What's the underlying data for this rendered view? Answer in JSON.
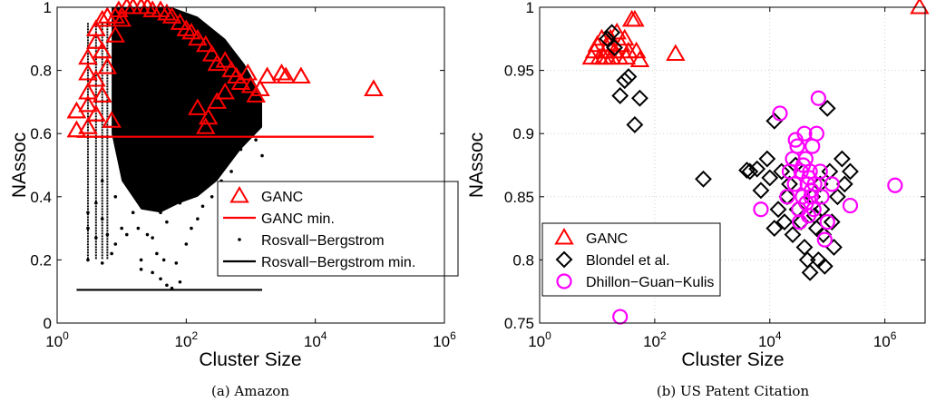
{
  "captions": [
    "(a) Amazon",
    "(b) US Patent Citation"
  ],
  "colors": {
    "ganc": "#ff0000",
    "rb": "#000000",
    "blondel": "#000000",
    "dgk": "#ff00ff"
  },
  "chart_data": [
    {
      "type": "scatter",
      "xscale": "log",
      "xlabel": "Cluster Size",
      "ylabel": "NAssoc",
      "xlim": [
        1,
        1000000
      ],
      "ylim": [
        0,
        1
      ],
      "xticks": [
        {
          "v": 1,
          "base": "10",
          "exp": "0"
        },
        {
          "v": 100,
          "base": "10",
          "exp": "2"
        },
        {
          "v": 10000,
          "base": "10",
          "exp": "4"
        },
        {
          "v": 1000000,
          "base": "10",
          "exp": "6"
        }
      ],
      "yticks": [
        0,
        0.2,
        0.4,
        0.6,
        0.8,
        1
      ],
      "ytick_labels": [
        "0",
        "0.2",
        "0.4",
        "0.6",
        "0.8",
        "1"
      ],
      "legend": {
        "position": "center-right",
        "entries": [
          "GANC",
          "GANC min.",
          "Rosvall−Bergstrom",
          "Rosvall−Bergstrom min."
        ]
      },
      "series": [
        {
          "name": "GANC",
          "marker": "triangle",
          "color": "#ff0000",
          "points": [
            [
              2,
              0.67
            ],
            [
              2,
              0.61
            ],
            [
              3,
              0.73
            ],
            [
              3,
              0.69
            ],
            [
              3,
              0.79
            ],
            [
              3,
              0.62
            ],
            [
              3,
              0.84
            ],
            [
              4,
              0.89
            ],
            [
              4,
              0.77
            ],
            [
              4,
              0.66
            ],
            [
              4,
              0.93
            ],
            [
              5,
              0.96
            ],
            [
              5,
              0.72
            ],
            [
              5,
              0.86
            ],
            [
              6,
              0.97
            ],
            [
              6,
              0.81
            ],
            [
              7,
              0.64
            ],
            [
              8,
              0.97
            ],
            [
              8,
              0.91
            ],
            [
              9,
              0.99
            ],
            [
              10,
              0.96
            ],
            [
              12,
              1.0
            ],
            [
              15,
              1.0
            ],
            [
              20,
              1.0
            ],
            [
              25,
              1.0
            ],
            [
              30,
              0.99
            ],
            [
              40,
              0.99
            ],
            [
              50,
              0.98
            ],
            [
              60,
              0.97
            ],
            [
              80,
              0.95
            ],
            [
              100,
              0.93
            ],
            [
              120,
              0.92
            ],
            [
              150,
              0.9
            ],
            [
              200,
              0.88
            ],
            [
              250,
              0.85
            ],
            [
              300,
              0.82
            ],
            [
              400,
              0.83
            ],
            [
              500,
              0.8
            ],
            [
              600,
              0.78
            ],
            [
              700,
              0.76
            ],
            [
              900,
              0.79
            ],
            [
              1000,
              0.75
            ],
            [
              1200,
              0.72
            ],
            [
              1400,
              0.74
            ],
            [
              1800,
              0.78
            ],
            [
              3000,
              0.79
            ],
            [
              3500,
              0.78
            ],
            [
              6000,
              0.78
            ],
            [
              80000,
              0.74
            ],
            [
              220,
              0.65
            ],
            [
              300,
              0.7
            ],
            [
              200,
              0.62
            ],
            [
              150,
              0.68
            ],
            [
              400,
              0.73
            ]
          ]
        },
        {
          "name": "GANC min.",
          "type": "line",
          "color": "#ff0000",
          "y": 0.59,
          "x": [
            2,
            80000
          ]
        },
        {
          "name": "Rosvall−Bergstrom",
          "marker": "dot",
          "color": "#000000",
          "points": [
            [
              3,
              0.35
            ],
            [
              3,
              0.3
            ],
            [
              3,
              0.2
            ],
            [
              4,
              0.27
            ],
            [
              4,
              0.38
            ],
            [
              5,
              0.19
            ],
            [
              5,
              0.33
            ],
            [
              5,
              0.45
            ],
            [
              6,
              0.28
            ],
            [
              7,
              0.22
            ],
            [
              8,
              0.25
            ],
            [
              8,
              0.4
            ],
            [
              10,
              0.3
            ],
            [
              12,
              0.28
            ],
            [
              15,
              0.35
            ],
            [
              18,
              0.3
            ],
            [
              20,
              0.2
            ],
            [
              25,
              0.28
            ],
            [
              30,
              0.27
            ],
            [
              40,
              0.35
            ],
            [
              50,
              0.32
            ],
            [
              60,
              0.4
            ],
            [
              80,
              0.38
            ],
            [
              100,
              0.45
            ],
            [
              150,
              0.42
            ],
            [
              200,
              0.5
            ],
            [
              250,
              0.48
            ],
            [
              300,
              0.55
            ],
            [
              400,
              0.52
            ],
            [
              600,
              0.58
            ],
            [
              800,
              0.6
            ],
            [
              1200,
              0.58
            ],
            [
              1500,
              0.53
            ],
            [
              30,
              0.16
            ],
            [
              40,
              0.14
            ],
            [
              50,
              0.12
            ],
            [
              60,
              0.11
            ],
            [
              80,
              0.13
            ],
            [
              20,
              0.17
            ],
            [
              35,
              0.22
            ],
            [
              45,
              0.2
            ],
            [
              70,
              0.19
            ],
            [
              100,
              0.25
            ],
            [
              120,
              0.3
            ],
            [
              150,
              0.33
            ],
            [
              180,
              0.37
            ],
            [
              250,
              0.4
            ],
            [
              350,
              0.45
            ],
            [
              500,
              0.48
            ],
            [
              700,
              0.55
            ],
            [
              1000,
              0.62
            ]
          ]
        },
        {
          "name": "Rosvall−Bergstrom min.",
          "type": "line",
          "color": "#000000",
          "y": 0.105,
          "x": [
            2,
            1500
          ]
        }
      ]
    },
    {
      "type": "scatter",
      "xscale": "log",
      "xlabel": "Cluster Size",
      "ylabel": "NAssoc",
      "xlim": [
        1,
        5000000
      ],
      "ylim": [
        0.75,
        1
      ],
      "xticks": [
        {
          "v": 1,
          "base": "10",
          "exp": "0"
        },
        {
          "v": 100,
          "base": "10",
          "exp": "2"
        },
        {
          "v": 10000,
          "base": "10",
          "exp": "4"
        },
        {
          "v": 1000000,
          "base": "10",
          "exp": "6"
        }
      ],
      "yticks": [
        0.75,
        0.8,
        0.85,
        0.9,
        0.95,
        1
      ],
      "ytick_labels": [
        "0.75",
        "0.8",
        "0.85",
        "0.9",
        "0.95",
        "1"
      ],
      "legend": {
        "position": "bottom-left",
        "entries": [
          "GANC",
          "Blondel et al.",
          "Dhillon−Guan−Kulis"
        ]
      },
      "series": [
        {
          "name": "GANC",
          "marker": "triangle",
          "color": "#ff0000",
          "points": [
            [
              8,
              0.96
            ],
            [
              9,
              0.965
            ],
            [
              10,
              0.97
            ],
            [
              11,
              0.96
            ],
            [
              12,
              0.975
            ],
            [
              13,
              0.96
            ],
            [
              14,
              0.965
            ],
            [
              15,
              0.96
            ],
            [
              16,
              0.97
            ],
            [
              17,
              0.975
            ],
            [
              18,
              0.96
            ],
            [
              20,
              0.965
            ],
            [
              22,
              0.98
            ],
            [
              24,
              0.96
            ],
            [
              26,
              0.97
            ],
            [
              30,
              0.975
            ],
            [
              32,
              0.96
            ],
            [
              35,
              0.965
            ],
            [
              40,
              0.99
            ],
            [
              45,
              0.99
            ],
            [
              48,
              0.965
            ],
            [
              55,
              0.958
            ],
            [
              230,
              0.963
            ],
            [
              4000000,
              1.0
            ]
          ]
        },
        {
          "name": "Blondel et al.",
          "marker": "diamond",
          "color": "#000000",
          "points": [
            [
              15,
              0.975
            ],
            [
              18,
              0.98
            ],
            [
              20,
              0.968
            ],
            [
              25,
              0.93
            ],
            [
              30,
              0.942
            ],
            [
              35,
              0.945
            ],
            [
              45,
              0.907
            ],
            [
              55,
              0.928
            ],
            [
              700,
              0.864
            ],
            [
              4000,
              0.871
            ],
            [
              4500,
              0.87
            ],
            [
              6000,
              0.872
            ],
            [
              7000,
              0.855
            ],
            [
              9000,
              0.88
            ],
            [
              10000,
              0.865
            ],
            [
              12000,
              0.91
            ],
            [
              14000,
              0.84
            ],
            [
              16000,
              0.87
            ],
            [
              18000,
              0.83
            ],
            [
              20000,
              0.85
            ],
            [
              22000,
              0.86
            ],
            [
              25000,
              0.82
            ],
            [
              28000,
              0.875
            ],
            [
              30000,
              0.84
            ],
            [
              35000,
              0.83
            ],
            [
              40000,
              0.81
            ],
            [
              45000,
              0.8
            ],
            [
              50000,
              0.79
            ],
            [
              55000,
              0.85
            ],
            [
              60000,
              0.835
            ],
            [
              65000,
              0.825
            ],
            [
              70000,
              0.8
            ],
            [
              75000,
              0.86
            ],
            [
              80000,
              0.84
            ],
            [
              85000,
              0.82
            ],
            [
              90000,
              0.795
            ],
            [
              100000,
              0.92
            ],
            [
              110000,
              0.87
            ],
            [
              120000,
              0.83
            ],
            [
              130000,
              0.81
            ],
            [
              150000,
              0.85
            ],
            [
              180000,
              0.88
            ],
            [
              200000,
              0.86
            ],
            [
              250000,
              0.87
            ],
            [
              12000,
              0.825
            ]
          ]
        },
        {
          "name": "Dhillon−Guan−Kulis",
          "marker": "circle",
          "color": "#ff00ff",
          "points": [
            [
              25,
              0.755
            ],
            [
              7000,
              0.84
            ],
            [
              15000,
              0.916
            ],
            [
              20000,
              0.85
            ],
            [
              22000,
              0.87
            ],
            [
              25000,
              0.88
            ],
            [
              27000,
              0.86
            ],
            [
              30000,
              0.89
            ],
            [
              32000,
              0.84
            ],
            [
              35000,
              0.87
            ],
            [
              37000,
              0.85
            ],
            [
              40000,
              0.9
            ],
            [
              42000,
              0.88
            ],
            [
              45000,
              0.86
            ],
            [
              47000,
              0.835
            ],
            [
              50000,
              0.87
            ],
            [
              52000,
              0.85
            ],
            [
              55000,
              0.89
            ],
            [
              58000,
              0.84
            ],
            [
              60000,
              0.86
            ],
            [
              65000,
              0.9
            ],
            [
              70000,
              0.928
            ],
            [
              75000,
              0.87
            ],
            [
              80000,
              0.85
            ],
            [
              90000,
              0.816
            ],
            [
              100000,
              0.83
            ],
            [
              120000,
              0.86
            ],
            [
              250000,
              0.843
            ],
            [
              1500000,
              0.859
            ],
            [
              28000,
              0.895
            ],
            [
              33000,
              0.83
            ],
            [
              38000,
              0.875
            ],
            [
              43000,
              0.845
            ],
            [
              48000,
              0.865
            ],
            [
              53000,
              0.855
            ]
          ]
        }
      ]
    }
  ]
}
